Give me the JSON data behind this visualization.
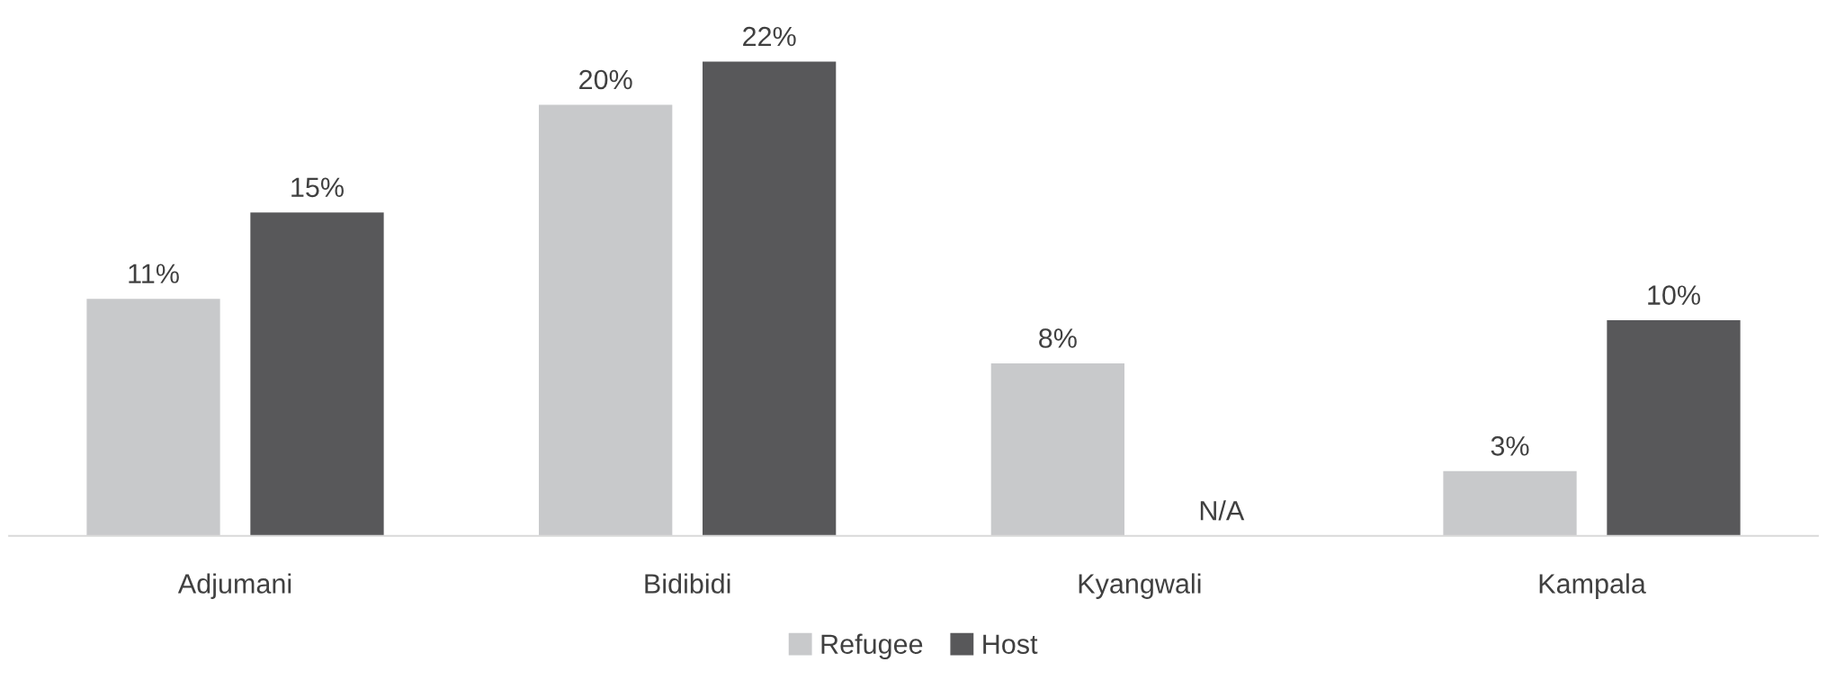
{
  "chart_data": {
    "type": "bar",
    "categories": [
      "Adjumani",
      "Bidibidi",
      "Kyangwali",
      "Kampala"
    ],
    "series": [
      {
        "name": "Refugee",
        "color": "#c8c9cb",
        "values": [
          11,
          20,
          8,
          3
        ],
        "value_labels": [
          "11%",
          "20%",
          "8%",
          "3%"
        ]
      },
      {
        "name": "Host",
        "color": "#58585a",
        "values": [
          15,
          22,
          null,
          10
        ],
        "value_labels": [
          "15%",
          "22%",
          "N/A",
          "10%"
        ]
      }
    ],
    "legend": "bottom",
    "grid": false
  }
}
